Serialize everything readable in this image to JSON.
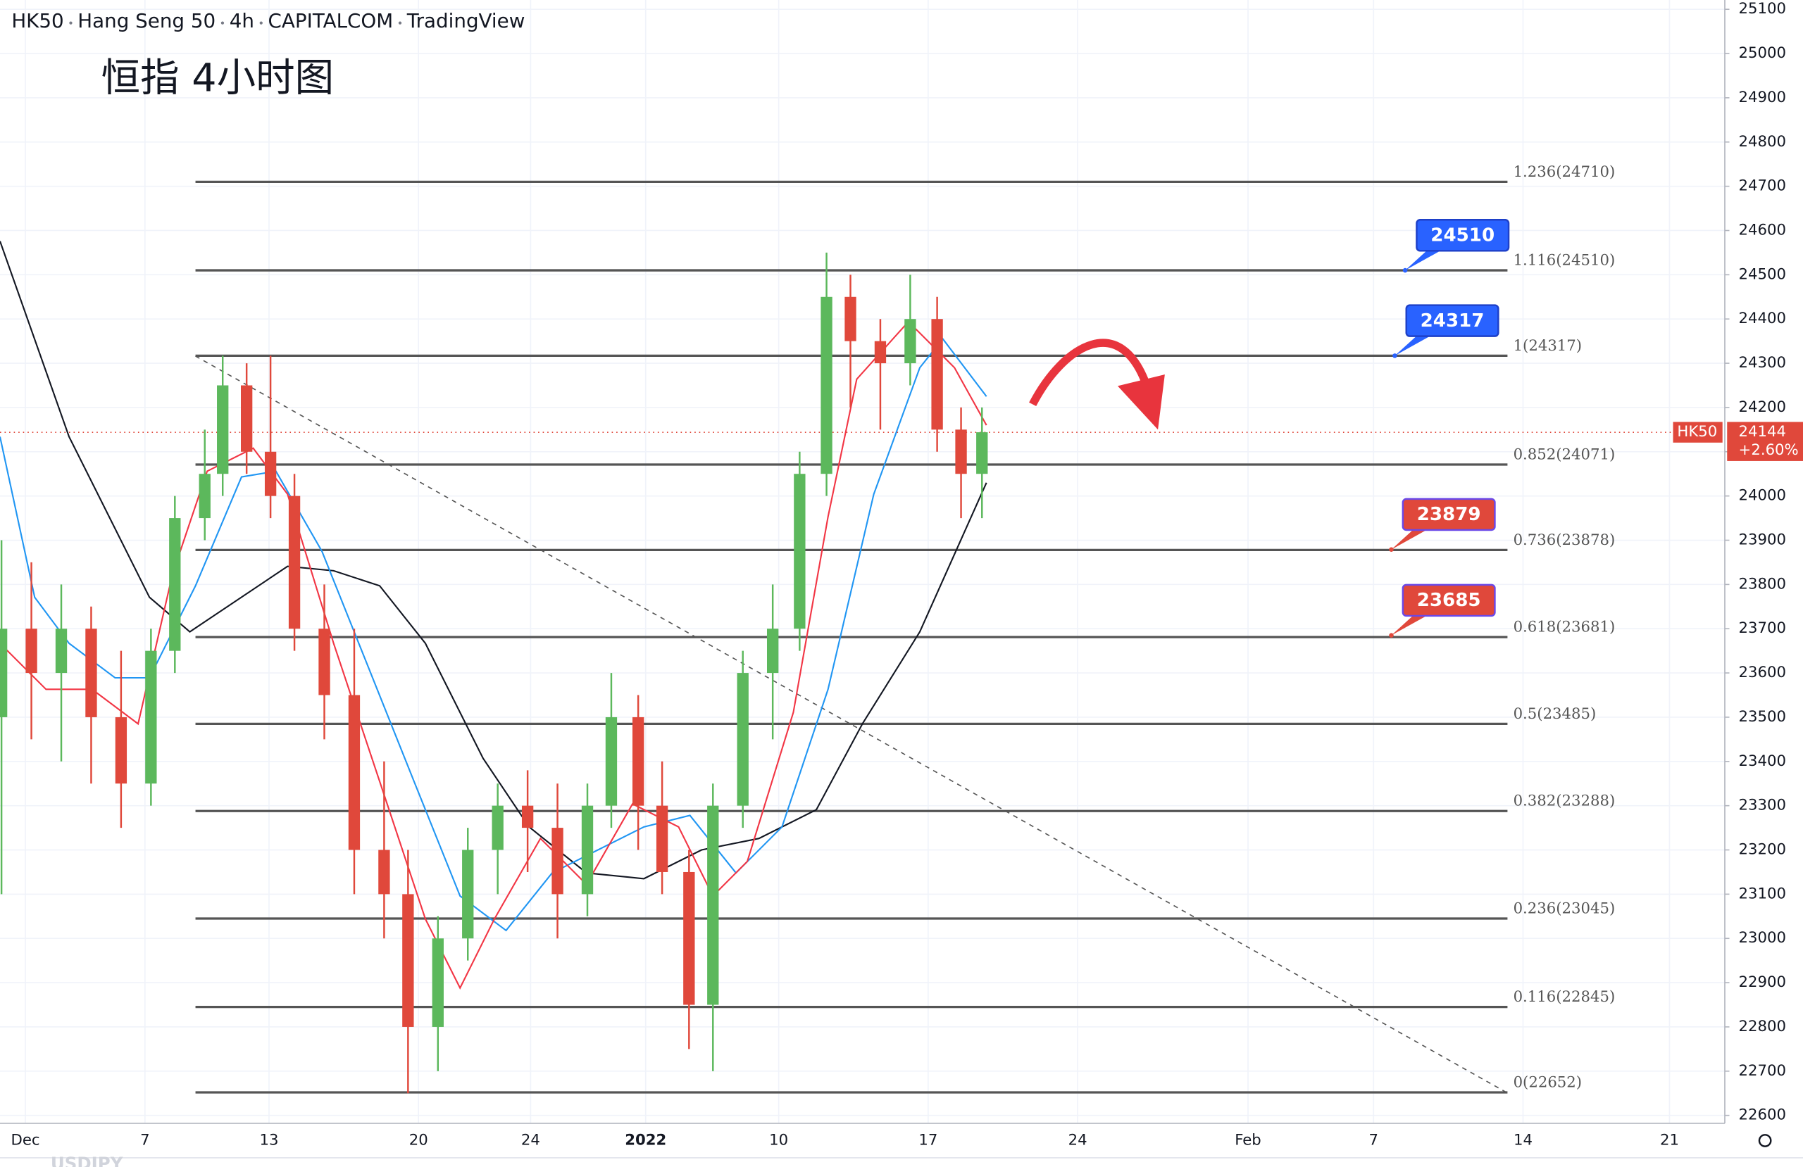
{
  "chart_data": {
    "type": "candlestick",
    "header": [
      "HK50",
      "Hang Seng 50",
      "4h",
      "CAPITALCOM",
      "TradingView"
    ],
    "title": "恒指 4小时图",
    "watermark": "USDJPY",
    "ylim": [
      22582,
      25121
    ],
    "yticks": [
      22600,
      22700,
      22800,
      22900,
      23000,
      23100,
      23200,
      23300,
      23400,
      23500,
      23600,
      23700,
      23800,
      23900,
      24000,
      24100,
      24200,
      24300,
      24400,
      24500,
      24600,
      24700,
      24800,
      24900,
      25000,
      25100
    ],
    "xlim": [
      -0.85,
      56.85
    ],
    "xticks": [
      {
        "value": 0,
        "label": "Dec"
      },
      {
        "value": 4,
        "label": "7"
      },
      {
        "value": 8.15,
        "label": "13"
      },
      {
        "value": 13.15,
        "label": "20"
      },
      {
        "value": 16.9,
        "label": "24"
      },
      {
        "value": 20.75,
        "label": "2022"
      },
      {
        "value": 25.2,
        "label": "10"
      },
      {
        "value": 30.2,
        "label": "17"
      },
      {
        "value": 35.2,
        "label": "24"
      },
      {
        "value": 40.9,
        "label": "Feb"
      },
      {
        "value": 45.1,
        "label": "7"
      },
      {
        "value": 50.1,
        "label": "14"
      },
      {
        "value": 55,
        "label": "21"
      }
    ],
    "grid": true,
    "up_color": "#5cb85c",
    "down_color": "#e0483b",
    "x": [
      -0.8,
      0.2,
      1.2,
      2.2,
      3.2,
      4.2,
      5.0,
      6.0,
      6.6,
      7.4,
      8.2,
      9.0,
      10.0,
      11.0,
      12.0,
      12.8,
      13.8,
      14.8,
      15.8,
      16.8,
      17.8,
      18.8,
      19.6,
      20.5,
      21.3,
      22.2,
      23.0,
      24.0,
      25.0,
      25.9,
      26.8,
      27.6,
      28.6,
      29.6,
      30.5,
      31.3,
      32.0
    ],
    "open": [
      23500,
      23700,
      23600,
      23700,
      23500,
      23350,
      23650,
      23950,
      24050,
      24250,
      24100,
      24000,
      23700,
      23550,
      23200,
      23100,
      22800,
      23000,
      23200,
      23300,
      23250,
      23100,
      23300,
      23500,
      23300,
      23150,
      22850,
      23300,
      23600,
      23700,
      24050,
      24450,
      24350,
      24300,
      24400,
      24150,
      24050
    ],
    "high": [
      23900,
      23850,
      23800,
      23750,
      23650,
      23700,
      24000,
      24150,
      24317,
      24300,
      24317,
      24050,
      23800,
      23700,
      23400,
      23200,
      23050,
      23250,
      23350,
      23380,
      23350,
      23350,
      23600,
      23550,
      23400,
      23200,
      23350,
      23650,
      23800,
      24100,
      24550,
      24500,
      24400,
      24500,
      24450,
      24200,
      24200
    ],
    "low": [
      23100,
      23450,
      23400,
      23350,
      23250,
      23300,
      23600,
      23900,
      24000,
      24050,
      23950,
      23650,
      23450,
      23100,
      23000,
      22650,
      22700,
      22950,
      23100,
      23150,
      23000,
      23050,
      23250,
      23200,
      23100,
      22750,
      22700,
      23250,
      23450,
      23650,
      24000,
      24200,
      24150,
      24250,
      24100,
      23950,
      23950
    ],
    "close": [
      23700,
      23600,
      23700,
      23500,
      23350,
      23650,
      23950,
      24050,
      24250,
      24100,
      24000,
      23700,
      23550,
      23200,
      23100,
      22800,
      23000,
      23200,
      23300,
      23250,
      23100,
      23300,
      23500,
      23300,
      23150,
      22850,
      23300,
      23600,
      23700,
      24050,
      24450,
      24350,
      24300,
      24400,
      24150,
      24050,
      24144
    ],
    "series": [
      {
        "color": "#131722",
        "x": [
          -0.85,
          1.46,
          4.15,
          5.5,
          8.77,
          10.31,
          11.85,
          13.38,
          15.31,
          16.85,
          18.77,
          20.69,
          22.62,
          24.54,
          26.46,
          28,
          29.92,
          32.15
        ],
        "values": [
          24576,
          24134,
          23771,
          23693,
          23841,
          23831,
          23797,
          23667,
          23407,
          23252,
          23148,
          23135,
          23200,
          23226,
          23291,
          23485,
          23693,
          24030
        ]
      },
      {
        "color": "#2196f3",
        "x": [
          -0.85,
          0.31,
          1.46,
          3,
          4.15,
          5.69,
          7.23,
          8.38,
          9.92,
          11.46,
          13,
          14.54,
          16.08,
          17.62,
          19.15,
          20.69,
          22.23,
          23.77,
          25.31,
          26.85,
          28.38,
          29.92,
          30.69,
          32.15
        ],
        "values": [
          24134,
          23771,
          23667,
          23589,
          23589,
          23797,
          24043,
          24056,
          23875,
          23615,
          23355,
          23096,
          23018,
          23148,
          23200,
          23252,
          23278,
          23148,
          23252,
          23563,
          24004,
          24290,
          24355,
          24225
        ]
      },
      {
        "color": "#f23645",
        "x": [
          -0.85,
          0.69,
          2.23,
          3.77,
          4.92,
          6.08,
          7.62,
          8.77,
          10.31,
          11.85,
          13.38,
          14.54,
          15.69,
          17.23,
          18.77,
          20.31,
          21.85,
          23,
          24.15,
          25.69,
          26.85,
          27.81,
          29.54,
          31.08,
          32.15
        ],
        "values": [
          23667,
          23563,
          23563,
          23485,
          23823,
          24056,
          24108,
          24004,
          23667,
          23355,
          23044,
          22888,
          23044,
          23226,
          23122,
          23304,
          23252,
          23096,
          23174,
          23511,
          23953,
          24264,
          24394,
          24290,
          24160
        ]
      }
    ],
    "fib_levels": [
      {
        "label": "1.236(24710)",
        "value": 24710
      },
      {
        "label": "1.116(24510)",
        "value": 24510
      },
      {
        "label": "1(24317)",
        "value": 24317
      },
      {
        "label": "0.852(24071)",
        "value": 24071
      },
      {
        "label": "0.736(23878)",
        "value": 23878
      },
      {
        "label": "0.618(23681)",
        "value": 23681
      },
      {
        "label": "0.5(23485)",
        "value": 23485
      },
      {
        "label": "0.382(23288)",
        "value": 23288
      },
      {
        "label": "0.236(23045)",
        "value": 23045
      },
      {
        "label": "0.116(22845)",
        "value": 22845
      },
      {
        "label": "0(22652)",
        "value": 22652
      }
    ],
    "callouts": [
      {
        "value": 24510,
        "color": "#2962ff"
      },
      {
        "value": 24317,
        "color": "#2962ff"
      },
      {
        "value": 23879,
        "color": "#e0483b"
      },
      {
        "value": 23685,
        "color": "#e0483b"
      }
    ],
    "last_price": 24144,
    "symbol_label": "HK50",
    "change_label": "+2.60%"
  }
}
